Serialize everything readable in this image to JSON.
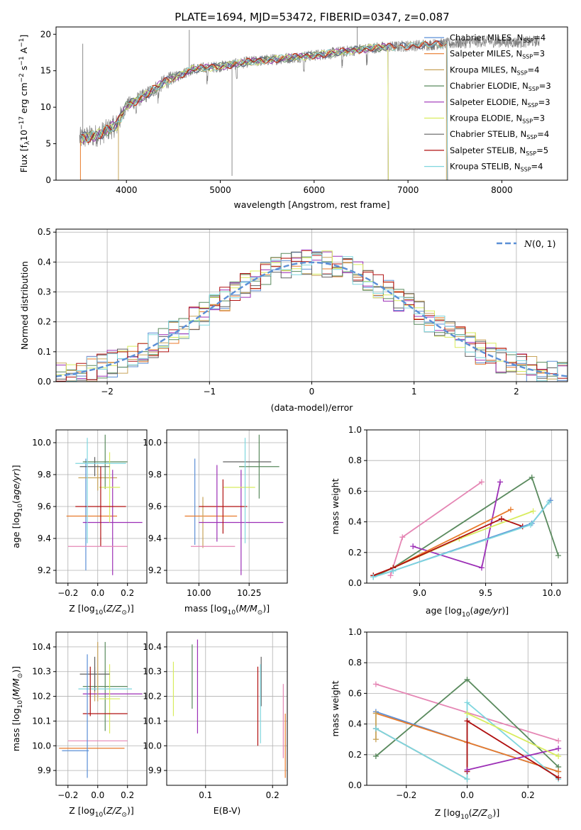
{
  "figure_title": "PLATE=1694, MJD=53472, FIBERID=0347, z=0.087",
  "colors": {
    "Chabrier MILES": "#5b8fd6",
    "Salpeter MILES": "#e87a2a",
    "Kroupa MILES": "#c8a45a",
    "Chabrier ELODIE": "#5a8a5e",
    "Salpeter ELODIE": "#9c2fb6",
    "Kroupa ELODIE": "#d8ec5e",
    "Chabrier STELIB": "#606060",
    "Salpeter STELIB": "#b01010",
    "Kroupa STELIB": "#7fd6de",
    "pink": "#e586b4",
    "gaussian": "#5b8fd6"
  },
  "chart_data": [
    {
      "id": "spectrum",
      "type": "line",
      "xlabel": "wavelength [Angstrom, rest frame]",
      "ylabel_parts": [
        "Flux [f",
        "λ",
        "10",
        "−17",
        " erg cm",
        "−2",
        " s",
        "−1",
        " A",
        "−1",
        "]"
      ],
      "xlim": [
        3250,
        8700
      ],
      "ylim": [
        0,
        21
      ],
      "xticks": [
        4000,
        5000,
        6000,
        7000,
        8000
      ],
      "yticks": [
        0,
        5,
        10,
        15,
        20
      ],
      "grid": false,
      "legend_position": "upper-right",
      "trend": [
        [
          3500,
          5.7
        ],
        [
          3700,
          6.2
        ],
        [
          3900,
          7.6
        ],
        [
          4000,
          10.2
        ],
        [
          4200,
          11.6
        ],
        [
          4400,
          13.4
        ],
        [
          4700,
          15.2
        ],
        [
          5000,
          15.6
        ],
        [
          5300,
          16.2
        ],
        [
          5600,
          16.6
        ],
        [
          6000,
          17.1
        ],
        [
          6300,
          17.6
        ],
        [
          6600,
          18.1
        ],
        [
          7000,
          18.4
        ],
        [
          7400,
          18.7
        ],
        [
          7800,
          19.0
        ],
        [
          8200,
          18.9
        ],
        [
          8400,
          19.1
        ]
      ],
      "series": [
        {
          "name": "Chabrier MILES",
          "nssp": "4"
        },
        {
          "name": "Salpeter MILES",
          "nssp": "3"
        },
        {
          "name": "Kroupa MILES",
          "nssp": "4"
        },
        {
          "name": "Chabrier ELODIE",
          "nssp": "3"
        },
        {
          "name": "Salpeter ELODIE",
          "nssp": "3"
        },
        {
          "name": "Kroupa ELODIE",
          "nssp": "3"
        },
        {
          "name": "Chabrier STELIB",
          "nssp": "4"
        },
        {
          "name": "Salpeter STELIB",
          "nssp": "5"
        },
        {
          "name": "Kroupa STELIB",
          "nssp": "4"
        }
      ]
    },
    {
      "id": "residuals",
      "type": "histogram",
      "xlabel": "(data-model)/error",
      "ylabel": "Normed distribution",
      "xlim": [
        -2.5,
        2.5
      ],
      "ylim": [
        0,
        0.51
      ],
      "xticks": [
        -2,
        -1,
        0,
        1,
        2
      ],
      "yticks": [
        0.0,
        0.1,
        0.2,
        0.3,
        0.4,
        0.5
      ],
      "grid": true,
      "bin_width": 0.1,
      "legend_position": "upper-right",
      "legend_label": "N(0,1)",
      "gaussian": {
        "mean": 0,
        "sigma": 1
      }
    },
    {
      "id": "age-vs-Z",
      "type": "errorbar",
      "xlabel": "Z [log10(Z/Z⊙)]",
      "ylabel": "age  [log10(age/yr)]",
      "xlim": [
        -0.28,
        0.33
      ],
      "ylim": [
        9.12,
        10.08
      ],
      "xticks": [
        -0.2,
        0.0,
        0.2
      ],
      "yticks": [
        9.2,
        9.4,
        9.6,
        9.8,
        10.0
      ],
      "grid": true,
      "points": [
        {
          "name": "Chabrier MILES",
          "x": -0.08,
          "xerr": 0.0,
          "y": 9.55,
          "yerr": 0.35
        },
        {
          "name": "Salpeter MILES",
          "x": -0.04,
          "xerr": 0.17,
          "y": 9.54,
          "yerr": 0.0
        },
        {
          "name": "Kroupa MILES",
          "x": 0.0,
          "xerr": 0.13,
          "y": 9.78,
          "yerr": 0.08
        },
        {
          "name": "Chabrier ELODIE",
          "x": 0.05,
          "xerr": 0.15,
          "y": 9.88,
          "yerr": 0.17
        },
        {
          "name": "Salpeter ELODIE",
          "x": 0.1,
          "xerr": 0.2,
          "y": 9.5,
          "yerr": 0.33
        },
        {
          "name": "Kroupa ELODIE",
          "x": 0.08,
          "xerr": 0.07,
          "y": 9.72,
          "yerr": 0.22
        },
        {
          "name": "Chabrier STELIB",
          "x": -0.02,
          "xerr": 0.1,
          "y": 9.85,
          "yerr": 0.06
        },
        {
          "name": "Salpeter STELIB",
          "x": 0.02,
          "xerr": 0.17,
          "y": 9.6,
          "yerr": 0.25
        },
        {
          "name": "Kroupa STELIB",
          "x": 0.02,
          "xerr": 0.17,
          "y": 9.87,
          "yerr": 0.0
        },
        {
          "name": "pink",
          "x": 0.0,
          "xerr": 0.2,
          "y": 9.35,
          "yerr": 0.0
        },
        {
          "name": "Kroupa STELIB",
          "x": -0.07,
          "xerr": 0.0,
          "y": 9.7,
          "yerr": 0.33
        }
      ]
    },
    {
      "id": "age-vs-mass",
      "type": "errorbar",
      "xlabel": "mass [log10(M/M⊙)]",
      "ylabel": "",
      "xlim": [
        9.84,
        10.44
      ],
      "ylim": [
        9.12,
        10.08
      ],
      "xticks": [
        10.0,
        10.25
      ],
      "yticks": [
        9.2,
        9.4,
        9.6,
        9.8,
        10.0
      ],
      "grid": true,
      "points": [
        {
          "name": "Chabrier MILES",
          "x": 9.98,
          "xerr": 0.0,
          "y": 9.63,
          "yerr": 0.27
        },
        {
          "name": "Salpeter MILES",
          "x": 10.06,
          "xerr": 0.13,
          "y": 9.54,
          "yerr": 0.0
        },
        {
          "name": "Kroupa MILES",
          "x": 10.02,
          "xerr": 0.0,
          "y": 9.5,
          "yerr": 0.16
        },
        {
          "name": "Chabrier ELODIE",
          "x": 10.3,
          "xerr": 0.1,
          "y": 9.85,
          "yerr": 0.2
        },
        {
          "name": "Salpeter ELODIE",
          "x": 10.21,
          "xerr": 0.21,
          "y": 9.5,
          "yerr": 0.33
        },
        {
          "name": "Kroupa ELODIE",
          "x": 10.2,
          "xerr": 0.08,
          "y": 9.72,
          "yerr": 0.0
        },
        {
          "name": "Chabrier STELIB",
          "x": 10.24,
          "xerr": 0.12,
          "y": 9.88,
          "yerr": 0.0
        },
        {
          "name": "Salpeter STELIB",
          "x": 10.12,
          "xerr": 0.12,
          "y": 9.6,
          "yerr": 0.17
        },
        {
          "name": "Kroupa STELIB",
          "x": 10.23,
          "xerr": 0.0,
          "y": 9.7,
          "yerr": 0.33
        },
        {
          "name": "pink",
          "x": 10.07,
          "xerr": 0.11,
          "y": 9.35,
          "yerr": 0.0
        },
        {
          "name": "Salpeter ELODIE",
          "x": 10.09,
          "xerr": 0.0,
          "y": 9.62,
          "yerr": 0.24
        }
      ]
    },
    {
      "id": "massweight-vs-age",
      "type": "line",
      "xlabel": "age  [log10(age/yr)]",
      "ylabel": "mass weight",
      "xlim": [
        8.6,
        10.12
      ],
      "ylim": [
        0,
        1
      ],
      "xticks": [
        9.0,
        9.5,
        10.0
      ],
      "yticks": [
        0.0,
        0.2,
        0.4,
        0.6,
        0.8,
        1.0
      ],
      "grid": true,
      "series": [
        {
          "name": "pink",
          "x": [
            8.78,
            8.87,
            9.47
          ],
          "y": [
            0.05,
            0.3,
            0.66
          ]
        },
        {
          "name": "Chabrier ELODIE",
          "x": [
            8.65,
            8.8,
            9.85,
            10.05
          ],
          "y": [
            0.04,
            0.1,
            0.69,
            0.18
          ]
        },
        {
          "name": "Salpeter ELODIE",
          "x": [
            8.95,
            9.47,
            9.61
          ],
          "y": [
            0.24,
            0.1,
            0.66
          ]
        },
        {
          "name": "Salpeter MILES",
          "x": [
            8.65,
            8.8,
            9.69
          ],
          "y": [
            0.05,
            0.1,
            0.48
          ]
        },
        {
          "name": "Kroupa ELODIE",
          "x": [
            8.8,
            9.3,
            9.86
          ],
          "y": [
            0.1,
            0.29,
            0.47
          ]
        },
        {
          "name": "Salpeter STELIB",
          "x": [
            8.65,
            8.8,
            9.62,
            9.78
          ],
          "y": [
            0.05,
            0.1,
            0.42,
            0.37
          ]
        },
        {
          "name": "Chabrier MILES",
          "x": [
            8.65,
            8.8,
            9.85,
            9.99
          ],
          "y": [
            0.04,
            0.08,
            0.39,
            0.54
          ]
        },
        {
          "name": "Kroupa STELIB",
          "x": [
            8.65,
            8.8,
            9.84,
            9.98
          ],
          "y": [
            0.04,
            0.08,
            0.38,
            0.53
          ]
        }
      ]
    },
    {
      "id": "mass-vs-Z",
      "type": "errorbar",
      "xlabel": "Z [log10(Z/Z⊙)]",
      "ylabel": "mass [log10(M/M⊙)]",
      "xlim": [
        -0.28,
        0.33
      ],
      "ylim": [
        9.84,
        10.46
      ],
      "xticks": [
        -0.2,
        0.0,
        0.2
      ],
      "yticks": [
        9.9,
        10.0,
        10.1,
        10.2,
        10.3,
        10.4
      ],
      "grid": true,
      "points": [
        {
          "name": "Chabrier MILES",
          "x": -0.15,
          "xerr": 0.09,
          "y": 9.98,
          "yerr": 0.0
        },
        {
          "name": "Salpeter MILES",
          "x": -0.04,
          "xerr": 0.22,
          "y": 9.99,
          "yerr": 0.0
        },
        {
          "name": "Kroupa MILES",
          "x": -0.02,
          "xerr": 0.0,
          "y": 10.25,
          "yerr": 0.07
        },
        {
          "name": "Chabrier ELODIE",
          "x": 0.05,
          "xerr": 0.15,
          "y": 10.24,
          "yerr": 0.18
        },
        {
          "name": "Salpeter ELODIE",
          "x": 0.1,
          "xerr": 0.2,
          "y": 10.21,
          "yerr": 0.0
        },
        {
          "name": "Kroupa ELODIE",
          "x": 0.08,
          "xerr": 0.07,
          "y": 10.19,
          "yerr": 0.14
        },
        {
          "name": "Chabrier STELIB",
          "x": -0.02,
          "xerr": 0.1,
          "y": 10.29,
          "yerr": 0.07
        },
        {
          "name": "Salpeter STELIB",
          "x": 0.05,
          "xerr": 0.15,
          "y": 10.13,
          "yerr": 0.0
        },
        {
          "name": "Kroupa STELIB",
          "x": 0.05,
          "xerr": 0.18,
          "y": 10.23,
          "yerr": 0.0
        },
        {
          "name": "pink",
          "x": 0.0,
          "xerr": 0.2,
          "y": 10.02,
          "yerr": 0.0
        },
        {
          "name": "Chabrier MILES",
          "x": -0.07,
          "xerr": 0.0,
          "y": 10.12,
          "yerr": 0.25
        },
        {
          "name": "Salpeter STELIB",
          "x": -0.05,
          "xerr": 0.0,
          "y": 10.22,
          "yerr": 0.1
        },
        {
          "name": "Kroupa MILES",
          "x": 0.0,
          "xerr": 0.0,
          "y": 10.3,
          "yerr": 0.12
        }
      ]
    },
    {
      "id": "mass-vs-EBV",
      "type": "errorbar",
      "xlabel": "E(B-V)",
      "ylabel": "",
      "xlim": [
        0.042,
        0.222
      ],
      "ylim": [
        9.84,
        10.46
      ],
      "xticks": [
        0.1,
        0.2
      ],
      "yticks": [
        9.9,
        10.0,
        10.1,
        10.2,
        10.3,
        10.4
      ],
      "grid": true,
      "points": [
        {
          "name": "Kroupa ELODIE",
          "x": 0.052,
          "xerr": 0.0,
          "y": 10.23,
          "yerr": 0.11
        },
        {
          "name": "Chabrier ELODIE",
          "x": 0.08,
          "xerr": 0.0,
          "y": 10.28,
          "yerr": 0.13
        },
        {
          "name": "Salpeter ELODIE",
          "x": 0.088,
          "xerr": 0.0,
          "y": 10.24,
          "yerr": 0.19
        },
        {
          "name": "Salpeter STELIB",
          "x": 0.178,
          "xerr": 0.0,
          "y": 10.16,
          "yerr": 0.16
        },
        {
          "name": "Chabrier STELIB",
          "x": 0.183,
          "xerr": 0.0,
          "y": 10.26,
          "yerr": 0.1
        },
        {
          "name": "Kroupa STELIB",
          "x": 0.182,
          "xerr": 0.0,
          "y": 10.17,
          "yerr": 0.16
        },
        {
          "name": "Salpeter MILES",
          "x": 0.219,
          "xerr": 0.0,
          "y": 10.0,
          "yerr": 0.13
        },
        {
          "name": "pink",
          "x": 0.216,
          "xerr": 0.0,
          "y": 10.1,
          "yerr": 0.15
        }
      ]
    },
    {
      "id": "massweight-vs-Z",
      "type": "line",
      "xlabel": "Z [log10(Z/Z⊙)]",
      "ylabel": "mass weight",
      "xlim": [
        -0.33,
        0.33
      ],
      "ylim": [
        0,
        1
      ],
      "xticks": [
        -0.2,
        0.0,
        0.2
      ],
      "yticks": [
        0.0,
        0.2,
        0.4,
        0.6,
        0.8,
        1.0
      ],
      "grid": true,
      "series": [
        {
          "name": "pink",
          "x": [
            -0.3,
            0.3
          ],
          "y": [
            0.66,
            0.29
          ]
        },
        {
          "name": "Chabrier ELODIE",
          "x": [
            -0.3,
            0.0,
            0.3
          ],
          "y": [
            0.19,
            0.69,
            0.12
          ]
        },
        {
          "name": "Chabrier MILES",
          "x": [
            -0.3,
            0.0,
            0.3
          ],
          "y": [
            0.48,
            0.28,
            0.09
          ]
        },
        {
          "name": "Salpeter MILES",
          "x": [
            -0.3,
            0.0,
            0.3
          ],
          "y": [
            0.47,
            0.28,
            0.09
          ]
        },
        {
          "name": "Kroupa MILES",
          "x": [
            -0.3,
            -0.3
          ],
          "y": [
            0.3,
            0.47
          ]
        },
        {
          "name": "Chabrier STELIB",
          "x": [
            -0.3,
            0.0
          ],
          "y": [
            0.37,
            0.04
          ]
        },
        {
          "name": "Kroupa STELIB",
          "x": [
            -0.3,
            0.0,
            0.0,
            0.3
          ],
          "y": [
            0.37,
            0.04,
            0.54,
            0.04
          ]
        },
        {
          "name": "Salpeter STELIB",
          "x": [
            0.0,
            0.0,
            0.3
          ],
          "y": [
            0.09,
            0.42,
            0.05
          ]
        },
        {
          "name": "Salpeter ELODIE",
          "x": [
            0.0,
            0.3
          ],
          "y": [
            0.1,
            0.24
          ]
        },
        {
          "name": "Kroupa ELODIE",
          "x": [
            0.0,
            0.3
          ],
          "y": [
            0.47,
            0.19
          ]
        }
      ]
    }
  ]
}
